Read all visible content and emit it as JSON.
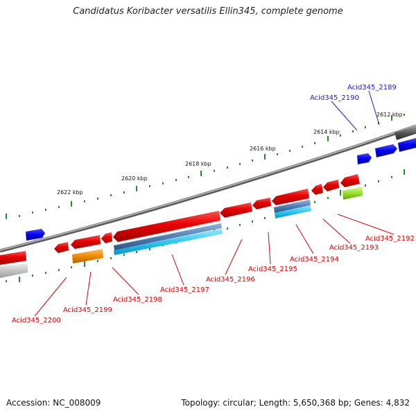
{
  "title": "Candidatus Koribacter versatilis Ellin345, complete genome",
  "footer": {
    "accession": "Accession: NC_008009",
    "summary": "Topology: circular; Length: 5,650,368 bp; Genes: 4,832"
  },
  "scale_labels": [
    "2612 kbp",
    "2614 kbp",
    "2616 kbp",
    "2618 kbp",
    "2620 kbp",
    "2622 kbp"
  ],
  "gene_labels": {
    "acid2189": "Acid345_2189",
    "acid2190": "Acid345_2190",
    "acid2192": "Acid345_2192",
    "acid2193": "Acid345_2193",
    "acid2194": "Acid345_2194",
    "acid2195": "Acid345_2195",
    "acid2196": "Acid345_2196",
    "acid2197": "Acid345_2197",
    "acid2198": "Acid345_2198",
    "acid2199": "Acid345_2199",
    "acid2200": "Acid345_2200"
  },
  "colors": {
    "forward_gene": "#e80000",
    "reverse_gene_blue": "#0000ee",
    "label_red": "#d60000",
    "label_blue": "#1a1acc",
    "backbone": "#808080",
    "tick": "#2a8a2a",
    "feature_steel": "#4f80b8",
    "feature_cyan": "#2ec8f0",
    "feature_orange": "#f08a00",
    "feature_green": "#9be02e"
  }
}
